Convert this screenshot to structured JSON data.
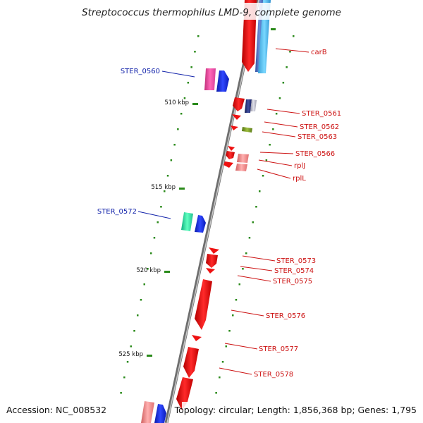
{
  "title": "Streptococcus thermophilus LMD-9, complete genome",
  "footer": {
    "accession": "Accession: NC_008532",
    "summary": "Topology: circular; Length: 1,856,368 bp; Genes: 1,795"
  },
  "scale_labels": [
    "510 kbp",
    "515 kbp",
    "520 kbp",
    "525 kbp"
  ],
  "genes": [
    {
      "name": "carB",
      "color": "#cc1111"
    },
    {
      "name": "STER_0560",
      "color": "#1122aa"
    },
    {
      "name": "STER_0561",
      "color": "#cc1111"
    },
    {
      "name": "STER_0562",
      "color": "#cc1111"
    },
    {
      "name": "STER_0563",
      "color": "#cc1111"
    },
    {
      "name": "STER_0566",
      "color": "#cc1111"
    },
    {
      "name": "rplJ",
      "color": "#cc1111"
    },
    {
      "name": "rplL",
      "color": "#cc1111"
    },
    {
      "name": "STER_0572",
      "color": "#1122aa"
    },
    {
      "name": "STER_0573",
      "color": "#cc1111"
    },
    {
      "name": "STER_0574",
      "color": "#cc1111"
    },
    {
      "name": "STER_0575",
      "color": "#cc1111"
    },
    {
      "name": "STER_0576",
      "color": "#cc1111"
    },
    {
      "name": "STER_0577",
      "color": "#cc1111"
    },
    {
      "name": "STER_0578",
      "color": "#cc1111"
    }
  ],
  "colors": {
    "backbone": "#7a7a7a",
    "gene_forward": "#ee1111",
    "tick": "#2a8a1a",
    "label_red": "#cc1111",
    "label_blue": "#1122aa"
  }
}
